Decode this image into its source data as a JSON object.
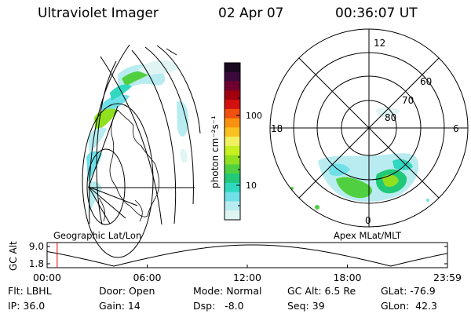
{
  "header": {
    "instrument": "Ultraviolet Imager",
    "date": "02 Apr 07",
    "time": "00:36:07 UT"
  },
  "colorbar": {
    "label": "photon cm⁻²s⁻¹",
    "ticks": [
      "100",
      "10"
    ],
    "colors": [
      "#1a0a20",
      "#3c0a3c",
      "#700030",
      "#a00010",
      "#d21010",
      "#f05010",
      "#f89010",
      "#f8c020",
      "#f0f060",
      "#c8f020",
      "#90e020",
      "#50d040",
      "#20c878",
      "#30d8c0",
      "#70e0e8",
      "#b8ecf0",
      "#e0f4f4"
    ]
  },
  "panels": {
    "geo_label": "Geographic Lat/Lon",
    "apex_label": "Apex MLat/MLT"
  },
  "polar_grid": {
    "mlt_labels": {
      "top": "12",
      "left": "18",
      "right": "6",
      "bottom": "0"
    },
    "lat_labels": [
      "60",
      "70",
      "80"
    ]
  },
  "altitude_plot": {
    "ylabel": "GC Alt",
    "yticks": [
      "9.0",
      "1.8"
    ],
    "xticks": [
      "00:00",
      "06:00",
      "12:00",
      "18:00",
      "23:59"
    ],
    "marker_time_hours": 0.6
  },
  "status": {
    "flt": "Flt: LBHL",
    "ip": "IP: 36.0",
    "door": "Door: Open",
    "gain": "Gain: 14",
    "mode": "Mode: Normal",
    "dsp": "Dsp:   -8.0",
    "gcalt": "GC Alt: 6.5 Re",
    "seq": "Seq: 39",
    "glat": "GLat: -76.9",
    "glon": "GLon:  42.3"
  }
}
